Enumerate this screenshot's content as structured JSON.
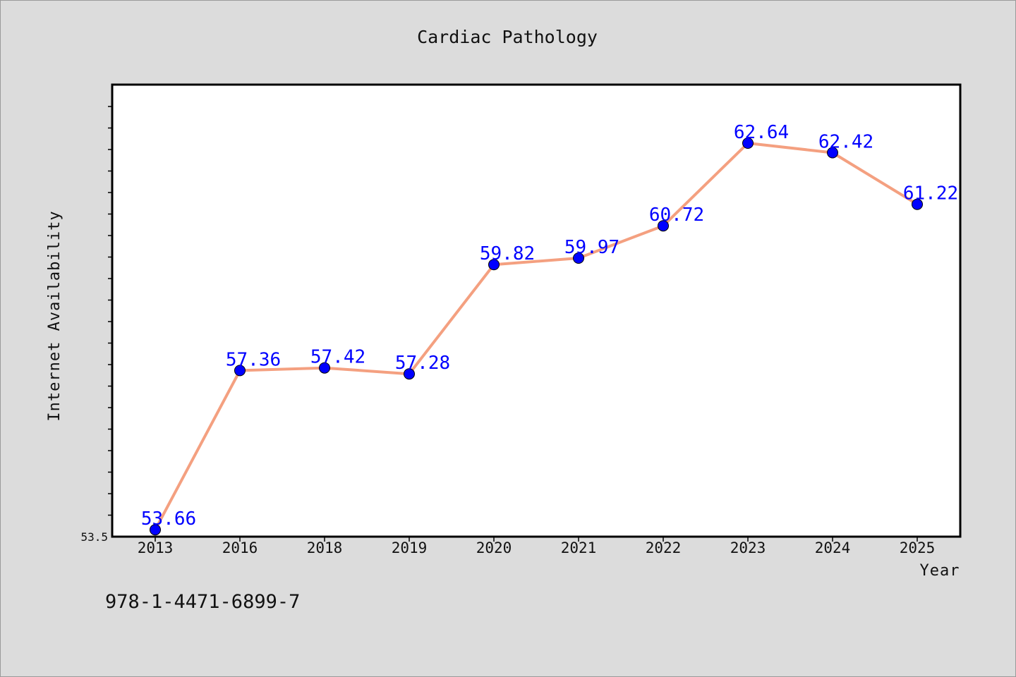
{
  "chart_data": {
    "type": "line",
    "title": "Cardiac Pathology",
    "xlabel": "Year",
    "ylabel": "Internet Availability",
    "categories": [
      "2013",
      "2016",
      "2018",
      "2019",
      "2020",
      "2021",
      "2022",
      "2023",
      "2024",
      "2025"
    ],
    "values": [
      53.66,
      57.36,
      57.42,
      57.28,
      59.82,
      59.97,
      60.72,
      62.64,
      62.42,
      61.22
    ],
    "data_labels": [
      "53.66",
      "57.36",
      "57.42",
      "57.28",
      "59.82",
      "59.97",
      "60.72",
      "62.64",
      "62.42",
      "61.22"
    ],
    "ylim": [
      53.5,
      64.0
    ],
    "y_tick_labels": [
      "53.5"
    ],
    "grid": false,
    "line_color": "#f4a080",
    "marker_color": "#0000ff",
    "label_color": "#0000ff"
  },
  "footer": {
    "isbn": "978-1-4471-6899-7"
  }
}
